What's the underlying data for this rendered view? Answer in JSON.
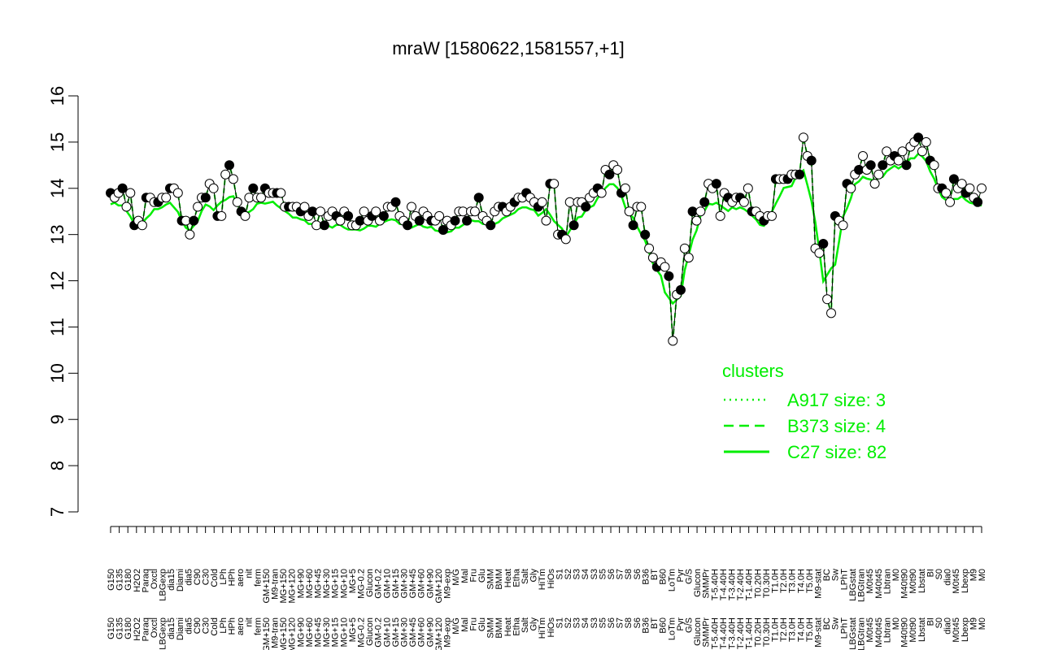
{
  "chart_data": {
    "type": "line",
    "title": "mraW [1580622,1581557,+1]",
    "xlabel": "",
    "ylabel": "",
    "ylim": [
      7,
      16
    ],
    "yticks": [
      7,
      8,
      9,
      10,
      11,
      12,
      13,
      14,
      15,
      16
    ],
    "grid": false,
    "legend_position": "right",
    "legend": {
      "title": "clusters",
      "entries": [
        {
          "label": "A917 size: 3",
          "style": "dotted"
        },
        {
          "label": "B373 size: 4",
          "style": "dashed"
        },
        {
          "label": "C27 size: 82",
          "style": "solid"
        }
      ]
    },
    "accent_color": "#00ee00",
    "xtick_labels": [
      "G150",
      "G135",
      "G180",
      "H2O2",
      "Paraq",
      "Oxctl",
      "LBGexp",
      "dia15",
      "Diami",
      "dia5",
      "C90",
      "C30",
      "Cold",
      "LPh",
      "HPh",
      "aero",
      "nit",
      "ferm",
      "GM+150",
      "M9-tran",
      "MG+150",
      "MG+120",
      "MG+90",
      "MG+60",
      "MG+45",
      "MG+30",
      "MG+15",
      "MG+10",
      "MG+5",
      "MG-0.2",
      "Glucon",
      "GM-0.2",
      "GM+10",
      "GM+15",
      "GM+30",
      "GM+45",
      "GM+60",
      "GM+90",
      "GM+120",
      "M9-exp",
      "M/G",
      "Mal",
      "Fru",
      "Glu",
      "SMM",
      "BMM",
      "Heat",
      "Etha",
      "Salt",
      "Gly",
      "HiTm",
      "HiOs",
      "S1",
      "S2",
      "S3",
      "S4",
      "S3",
      "S5",
      "S6",
      "S7",
      "S8",
      "S6",
      "B36",
      "BT",
      "B60",
      "LoTm",
      "Pyr",
      "G/S",
      "Glucon",
      "SMMPr",
      "T-5.40H",
      "T-4.40H",
      "T-3.40H",
      "T-2.40H",
      "T-1.40H",
      "T0.20H",
      "T0.30H",
      "T1.0H",
      "T2.0H",
      "T3.0H",
      "T4.0H",
      "T5.0H",
      "M9-stat",
      "BC",
      "Sw",
      "LPhT",
      "LBGstat",
      "LBGtran",
      "M0t45",
      "M40t45",
      "Lbtran",
      "M0",
      "M40t90",
      "M0t90",
      "Lbstat",
      "BI",
      "S0",
      "dia0",
      "M0t45",
      "Lbexp",
      "M9",
      "M0"
    ],
    "series": [
      {
        "values": [
          13.9,
          13.8,
          13.9,
          14.0,
          13.6,
          13.9,
          13.2,
          13.3,
          13.2,
          13.8,
          13.8,
          13.7,
          13.7,
          13.8,
          13.8,
          14.0,
          14.0,
          13.9,
          13.3,
          13.3,
          13.0,
          13.3,
          13.6,
          13.8,
          13.8,
          14.1,
          14.0,
          13.4,
          13.4,
          14.3,
          14.5,
          14.2,
          13.7,
          13.5,
          13.4,
          13.8,
          14.0,
          13.8,
          13.8,
          14.0,
          13.9,
          13.9,
          13.9,
          13.9,
          13.6,
          13.6,
          13.6,
          13.6,
          13.5,
          13.6,
          13.4,
          13.5,
          13.2,
          13.5,
          13.2,
          13.4,
          13.5,
          13.4,
          13.3,
          13.5,
          13.4,
          13.2,
          13.2,
          13.3,
          13.5,
          13.3,
          13.4,
          13.5,
          13.3,
          13.4,
          13.6,
          13.6,
          13.7,
          13.4,
          13.3,
          13.2,
          13.6,
          13.4,
          13.3,
          13.5,
          13.4,
          13.3,
          13.3,
          13.4,
          13.1,
          13.3,
          13.2,
          13.3,
          13.5,
          13.5,
          13.3,
          13.5,
          13.5,
          13.8,
          13.4,
          13.3,
          13.2,
          13.5,
          13.6,
          13.6,
          13.5,
          13.6,
          13.7,
          13.8,
          13.8,
          13.9,
          13.8,
          13.7,
          13.6,
          13.7,
          13.3,
          14.1,
          14.1,
          13.0,
          13.0,
          12.9,
          13.7,
          13.2,
          13.7,
          13.7,
          13.6,
          13.8,
          13.9,
          14.0,
          13.9,
          14.4,
          14.3,
          14.5,
          14.4,
          13.9,
          14.0,
          13.5,
          13.2,
          13.6,
          13.6,
          13.0,
          12.7,
          12.5,
          12.3,
          12.4,
          12.3,
          12.1,
          10.7,
          11.7,
          11.8,
          12.7,
          12.5,
          13.5,
          13.3,
          13.5,
          13.7,
          14.1,
          14.0,
          14.1,
          13.4,
          13.9,
          13.8,
          13.7,
          13.8,
          13.8,
          13.7,
          14.0,
          13.5,
          13.5,
          13.4,
          13.3,
          13.4,
          13.4,
          14.2,
          14.2,
          14.2,
          14.2,
          14.3,
          14.3,
          14.3,
          15.1,
          14.7,
          14.6,
          12.7,
          12.6,
          12.8,
          11.6,
          11.3,
          13.4,
          13.3,
          13.2,
          14.1,
          14.0,
          14.3,
          14.4,
          14.7,
          14.4,
          14.5,
          14.1,
          14.3,
          14.5,
          14.8,
          14.6,
          14.7,
          14.6,
          14.8,
          14.5,
          14.9,
          15.0,
          15.1,
          14.8,
          15.0,
          14.6,
          14.5,
          14.0,
          14.0,
          13.9,
          13.7,
          14.2,
          14.0,
          14.1,
          13.9,
          14.0,
          13.8,
          13.7,
          14.0
        ]
      }
    ]
  }
}
